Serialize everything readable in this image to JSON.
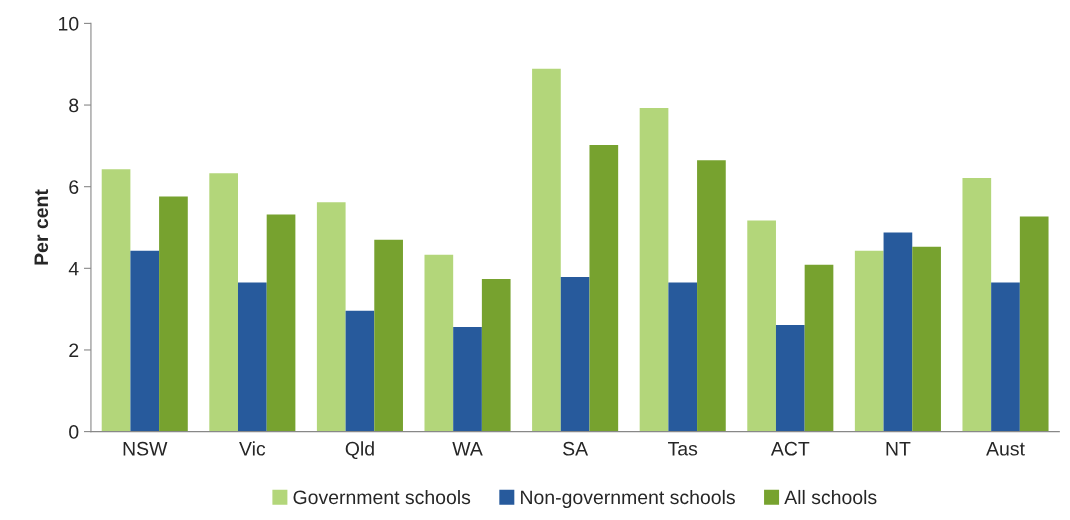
{
  "chart_data": {
    "type": "bar",
    "ylabel": "Per cent",
    "categories": [
      "NSW",
      "Vic",
      "Qld",
      "WA",
      "SA",
      "Tas",
      "ACT",
      "NT",
      "Aust"
    ],
    "series": [
      {
        "name": "Government schools",
        "color": "#b3d67a",
        "values": [
          6.43,
          6.33,
          5.62,
          4.33,
          8.89,
          7.93,
          5.17,
          4.43,
          6.21
        ]
      },
      {
        "name": "Non-government schools",
        "color": "#275a9c",
        "values": [
          4.43,
          3.65,
          2.96,
          2.56,
          3.79,
          3.65,
          2.61,
          4.88,
          3.65
        ]
      },
      {
        "name": "All schools",
        "color": "#77a22f",
        "values": [
          5.76,
          5.32,
          4.7,
          3.74,
          7.02,
          6.65,
          4.09,
          4.53,
          5.27
        ]
      }
    ],
    "ylim": [
      0,
      10
    ],
    "yticks": [
      0,
      2,
      4,
      6,
      8,
      10
    ],
    "grid": false,
    "legend": "bottom"
  }
}
